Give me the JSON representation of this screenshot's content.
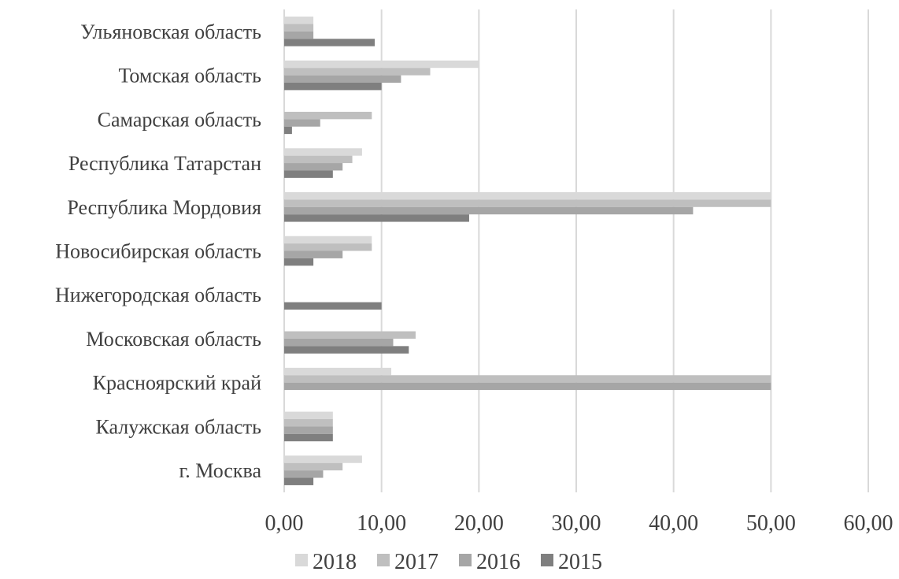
{
  "chart_data": {
    "type": "bar",
    "orientation": "horizontal",
    "categories": [
      "Ульяновская область",
      "Томская область",
      "Самарская область",
      "Республика Татарстан",
      "Республика Мордовия",
      "Новосибирская область",
      "Нижегородская область",
      "Московская область ",
      "Красноярский край",
      "Калужская область",
      "г. Москва"
    ],
    "series": [
      {
        "name": "2018",
        "color": "#d9d9d9",
        "values": [
          3.0,
          20.0,
          0,
          8.0,
          50.0,
          9.0,
          0,
          0,
          11.0,
          5.0,
          8.0
        ]
      },
      {
        "name": "2017",
        "color": "#bfbfbf",
        "values": [
          3.0,
          15.0,
          9.0,
          7.0,
          50.0,
          9.0,
          0,
          13.5,
          50.0,
          5.0,
          6.0
        ]
      },
      {
        "name": "2016",
        "color": "#a6a6a6",
        "values": [
          3.0,
          12.0,
          3.7,
          6.0,
          42.0,
          6.0,
          0,
          11.2,
          50.0,
          5.0,
          4.0
        ]
      },
      {
        "name": "2015",
        "color": "#7f7f7f",
        "values": [
          9.3,
          10.0,
          0.8,
          5.0,
          19.0,
          3.0,
          10.0,
          12.8,
          0,
          5.0,
          3.0
        ]
      }
    ],
    "xlim": [
      0,
      60
    ],
    "x_ticks": [
      "0,00",
      "10,00",
      "20,00",
      "30,00",
      "40,00",
      "50,00",
      "60,00"
    ],
    "grid": true,
    "legend_position": "bottom",
    "title": "",
    "xlabel": "",
    "ylabel": ""
  }
}
